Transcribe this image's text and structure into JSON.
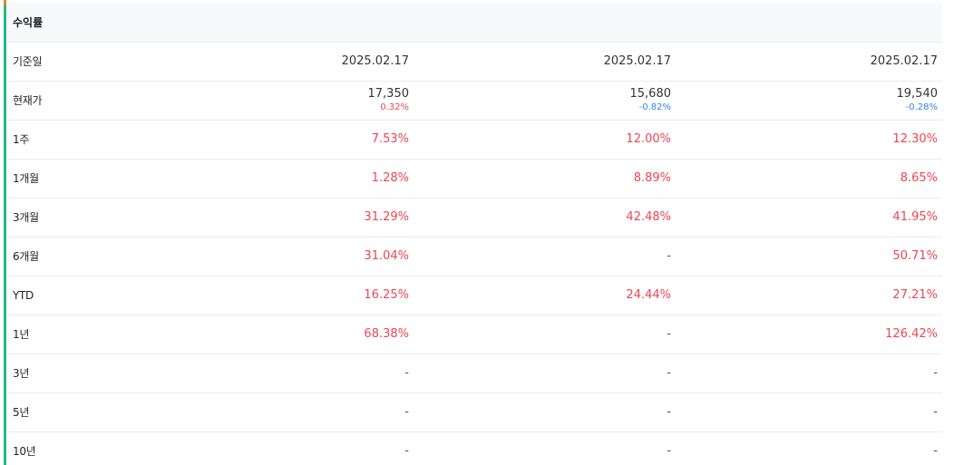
{
  "section_title": "수익률",
  "colors": {
    "up": "#f04452",
    "down": "#3182f6",
    "accent": "#27b88a"
  },
  "rows": {
    "base_date": {
      "label": "기준일",
      "values": [
        "2025.02.17",
        "2025.02.17",
        "2025.02.17"
      ]
    },
    "current_price": {
      "label": "현재가",
      "prices": [
        "17,350",
        "15,680",
        "19,540"
      ],
      "changes": [
        "0.32%",
        "-0.82%",
        "-0.28%"
      ]
    },
    "w1": {
      "label": "1주",
      "values": [
        "7.53%",
        "12.00%",
        "12.30%"
      ]
    },
    "m1": {
      "label": "1개월",
      "values": [
        "1.28%",
        "8.89%",
        "8.65%"
      ]
    },
    "m3": {
      "label": "3개월",
      "values": [
        "31.29%",
        "42.48%",
        "41.95%"
      ]
    },
    "m6": {
      "label": "6개월",
      "values": [
        "31.04%",
        "-",
        "50.71%"
      ]
    },
    "ytd": {
      "label": "YTD",
      "values": [
        "16.25%",
        "24.44%",
        "27.21%"
      ]
    },
    "y1": {
      "label": "1년",
      "values": [
        "68.38%",
        "-",
        "126.42%"
      ]
    },
    "y3": {
      "label": "3년",
      "values": [
        "-",
        "-",
        "-"
      ]
    },
    "y5": {
      "label": "5년",
      "values": [
        "-",
        "-",
        "-"
      ]
    },
    "y10": {
      "label": "10년",
      "values": [
        "-",
        "-",
        "-"
      ]
    }
  }
}
